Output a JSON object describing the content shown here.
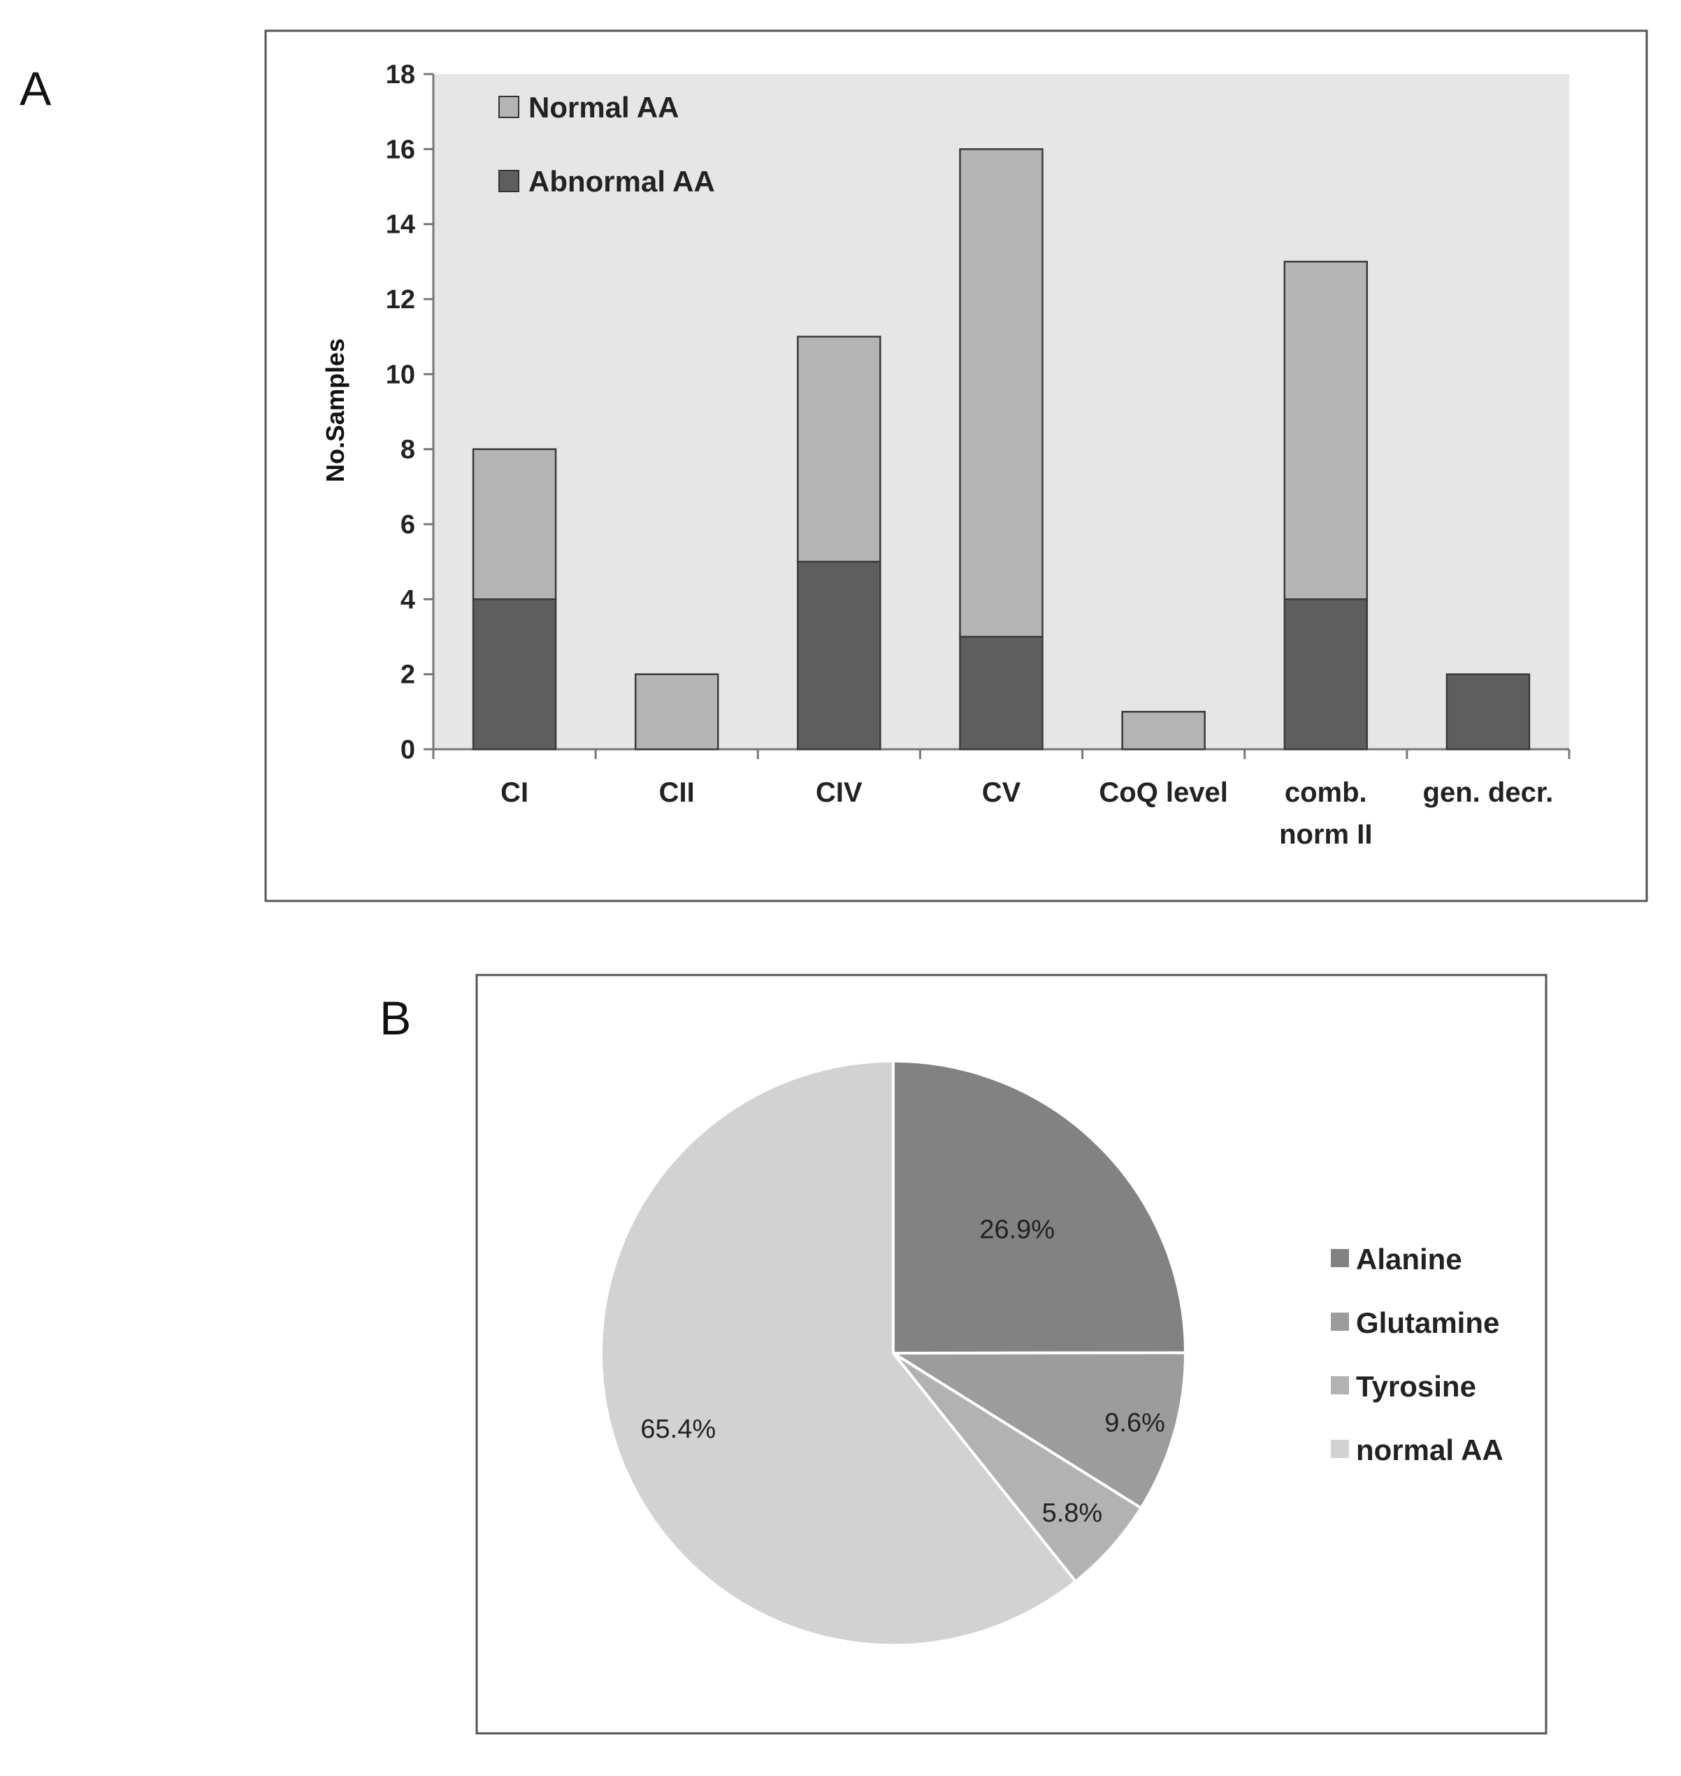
{
  "colors": {
    "plot_bg": "#e6e6e6",
    "normal": "#b4b4b4",
    "abnormal": "#5e5e5e",
    "frame": "#555555",
    "bar_stroke": "#3a3a3a"
  },
  "chart_data": [
    {
      "panel": "A",
      "type": "bar",
      "stacked": true,
      "title": "",
      "xlabel": "",
      "ylabel": "No.Samples",
      "ylim": [
        0,
        18
      ],
      "yticks": [
        "0",
        "2",
        "4",
        "6",
        "8",
        "10",
        "12",
        "14",
        "16",
        "18"
      ],
      "categories": [
        [
          "CI"
        ],
        [
          "CII"
        ],
        [
          "CIV"
        ],
        [
          "CV"
        ],
        [
          "CoQ level"
        ],
        [
          "comb.",
          "norm II"
        ],
        [
          "gen. decr."
        ]
      ],
      "series": [
        {
          "name": "Abnormal  AA",
          "color": "#5e5e5e",
          "values": [
            4,
            0,
            5,
            3,
            0,
            4,
            2
          ]
        },
        {
          "name": "Normal  AA",
          "color": "#b4b4b4",
          "values": [
            4,
            2,
            6,
            13,
            1,
            9,
            0
          ]
        }
      ],
      "legend": {
        "placement": "top-left",
        "items": [
          {
            "label": "Normal  AA",
            "color": "#b4b4b4"
          },
          {
            "label": "Abnormal  AA",
            "color": "#5e5e5e"
          }
        ]
      }
    },
    {
      "panel": "B",
      "type": "pie",
      "title": "",
      "slices": [
        {
          "label": "Alanine",
          "value": 26.9,
          "display": "26.9%",
          "color": "#828282"
        },
        {
          "label": "Glutamine",
          "value": 9.6,
          "display": "9.6%",
          "color": "#9c9c9c"
        },
        {
          "label": "Tyrosine",
          "value": 5.8,
          "display": "5.8%",
          "color": "#b2b2b2"
        },
        {
          "label": "normal AA",
          "value": 65.4,
          "display": "65.4%",
          "color": "#d2d2d2"
        }
      ],
      "legend": {
        "placement": "right"
      }
    }
  ]
}
